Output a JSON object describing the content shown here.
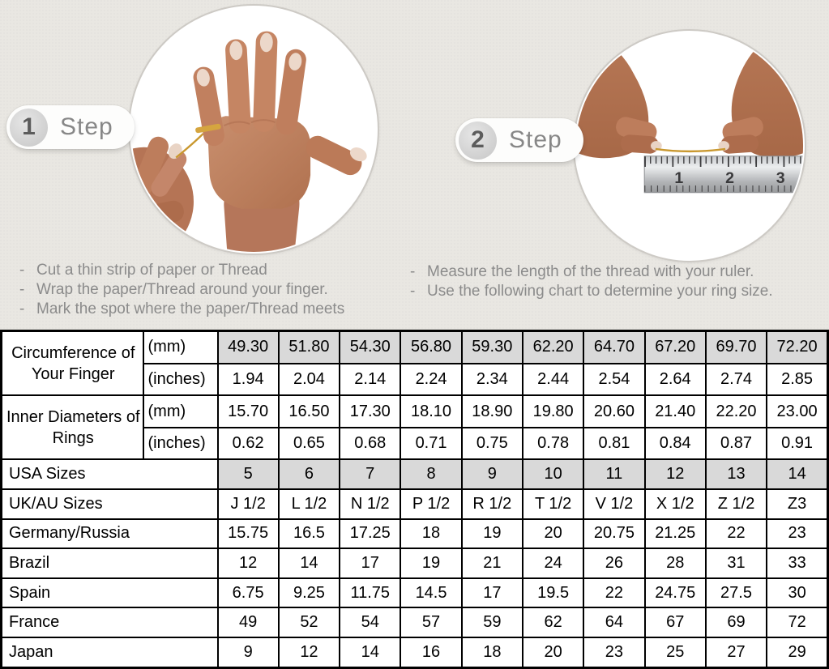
{
  "steps": [
    {
      "number": "1",
      "label": "Step",
      "instructions": [
        "Cut a thin strip of paper or Thread",
        "Wrap the paper/Thread around your finger.",
        "Mark the spot where the paper/Thread meets"
      ]
    },
    {
      "number": "2",
      "label": "Step",
      "instructions": [
        "Measure the length of the thread with your ruler.",
        "Use the following chart to determine your ring size."
      ]
    }
  ],
  "ruler": {
    "numbers": [
      "1",
      "2",
      "3"
    ]
  },
  "colors": {
    "highlight_cell": "#d9d9d9",
    "table_border": "#000000",
    "background": "#e9e7e2",
    "text_muted": "#8b8b8b",
    "gold_thread": "#c9982f"
  },
  "table": {
    "rows": [
      {
        "label": "Circumference of Your Finger",
        "label_rowspan": 2,
        "label_center": true,
        "unit": "(mm)",
        "highlight": true,
        "values": [
          "49.30",
          "51.80",
          "54.30",
          "56.80",
          "59.30",
          "62.20",
          "64.70",
          "67.20",
          "69.70",
          "72.20"
        ]
      },
      {
        "unit": "(inches)",
        "values": [
          "1.94",
          "2.04",
          "2.14",
          "2.24",
          "2.34",
          "2.44",
          "2.54",
          "2.64",
          "2.74",
          "2.85"
        ]
      },
      {
        "label": "Inner Diameters of Rings",
        "label_rowspan": 2,
        "label_center": true,
        "unit": "(mm)",
        "values": [
          "15.70",
          "16.50",
          "17.30",
          "18.10",
          "18.90",
          "19.80",
          "20.60",
          "21.40",
          "22.20",
          "23.00"
        ]
      },
      {
        "unit": "(inches)",
        "values": [
          "0.62",
          "0.65",
          "0.68",
          "0.71",
          "0.75",
          "0.78",
          "0.81",
          "0.84",
          "0.87",
          "0.91"
        ]
      },
      {
        "label": "USA Sizes",
        "label_colspan": 2,
        "highlight": true,
        "values": [
          "5",
          "6",
          "7",
          "8",
          "9",
          "10",
          "11",
          "12",
          "13",
          "14"
        ]
      },
      {
        "label": "UK/AU Sizes",
        "label_colspan": 2,
        "values": [
          "J 1/2",
          "L 1/2",
          "N 1/2",
          "P 1/2",
          "R 1/2",
          "T 1/2",
          "V 1/2",
          "X 1/2",
          "Z 1/2",
          "Z3"
        ]
      },
      {
        "label": "Germany/Russia",
        "label_colspan": 2,
        "values": [
          "15.75",
          "16.5",
          "17.25",
          "18",
          "19",
          "20",
          "20.75",
          "21.25",
          "22",
          "23"
        ]
      },
      {
        "label": "Brazil",
        "label_colspan": 2,
        "values": [
          "12",
          "14",
          "17",
          "19",
          "21",
          "24",
          "26",
          "28",
          "31",
          "33"
        ]
      },
      {
        "label": "Spain",
        "label_colspan": 2,
        "values": [
          "6.75",
          "9.25",
          "11.75",
          "14.5",
          "17",
          "19.5",
          "22",
          "24.75",
          "27.5",
          "30"
        ]
      },
      {
        "label": "France",
        "label_colspan": 2,
        "values": [
          "49",
          "52",
          "54",
          "57",
          "59",
          "62",
          "64",
          "67",
          "69",
          "72"
        ]
      },
      {
        "label": "Japan",
        "label_colspan": 2,
        "values": [
          "9",
          "12",
          "14",
          "16",
          "18",
          "20",
          "23",
          "25",
          "27",
          "29"
        ]
      }
    ]
  }
}
